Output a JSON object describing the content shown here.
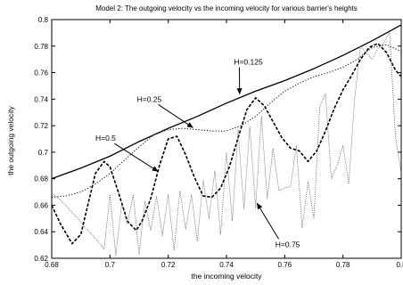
{
  "chart_data": {
    "type": "line",
    "title": "Model 2: The outgoing velocity vs the incoming velocity for various barrier's heights",
    "xlabel": "the incoming velocity",
    "ylabel": "the outgoing velocity",
    "xlim": [
      0.68,
      0.8
    ],
    "ylim": [
      0.62,
      0.8
    ],
    "xticks": [
      "0.68",
      "0.7",
      "0.72",
      "0.74",
      "0.76",
      "0.78",
      "0.8"
    ],
    "yticks": [
      "0.62",
      "0.64",
      "0.66",
      "0.68",
      "0.7",
      "0.72",
      "0.74",
      "0.76",
      "0.78",
      "0.8"
    ],
    "grid": false,
    "series": [
      {
        "name": "H=0.125",
        "style": "solid",
        "x": [
          0.68,
          0.69,
          0.7,
          0.71,
          0.72,
          0.73,
          0.74,
          0.75,
          0.76,
          0.77,
          0.78,
          0.79,
          0.8
        ],
        "y": [
          0.68,
          0.688,
          0.697,
          0.708,
          0.718,
          0.727,
          0.737,
          0.746,
          0.754,
          0.763,
          0.773,
          0.784,
          0.796
        ]
      },
      {
        "name": "H=0.25",
        "style": "dotted",
        "x": [
          0.68,
          0.685,
          0.69,
          0.695,
          0.7,
          0.705,
          0.71,
          0.715,
          0.72,
          0.725,
          0.73,
          0.735,
          0.74,
          0.745,
          0.75,
          0.755,
          0.76,
          0.765,
          0.77,
          0.775,
          0.78,
          0.785,
          0.79,
          0.795,
          0.8
        ],
        "y": [
          0.666,
          0.667,
          0.67,
          0.676,
          0.684,
          0.694,
          0.704,
          0.713,
          0.717,
          0.718,
          0.717,
          0.716,
          0.716,
          0.72,
          0.727,
          0.737,
          0.746,
          0.752,
          0.757,
          0.76,
          0.764,
          0.77,
          0.779,
          0.781,
          0.776
        ]
      },
      {
        "name": "H=0.5",
        "style": "dashed",
        "x": [
          0.68,
          0.683,
          0.687,
          0.69,
          0.695,
          0.698,
          0.7,
          0.703,
          0.706,
          0.709,
          0.711,
          0.714,
          0.717,
          0.72,
          0.723,
          0.726,
          0.729,
          0.732,
          0.735,
          0.738,
          0.741,
          0.744,
          0.747,
          0.75,
          0.753,
          0.756,
          0.759,
          0.762,
          0.765,
          0.768,
          0.771,
          0.774,
          0.777,
          0.78,
          0.783,
          0.786,
          0.789,
          0.792,
          0.795,
          0.798,
          0.8
        ],
        "y": [
          0.66,
          0.646,
          0.631,
          0.638,
          0.684,
          0.693,
          0.689,
          0.669,
          0.648,
          0.641,
          0.648,
          0.665,
          0.69,
          0.71,
          0.712,
          0.698,
          0.681,
          0.667,
          0.666,
          0.673,
          0.689,
          0.711,
          0.732,
          0.741,
          0.735,
          0.723,
          0.711,
          0.703,
          0.701,
          0.693,
          0.701,
          0.716,
          0.733,
          0.747,
          0.758,
          0.77,
          0.779,
          0.782,
          0.775,
          0.762,
          0.757
        ]
      },
      {
        "name": "H=0.75",
        "style": "thin",
        "x": [
          0.68,
          0.683,
          0.686,
          0.689,
          0.692,
          0.695,
          0.698,
          0.7,
          0.702,
          0.704,
          0.706,
          0.708,
          0.71,
          0.712,
          0.714,
          0.716,
          0.718,
          0.72,
          0.722,
          0.724,
          0.726,
          0.728,
          0.73,
          0.732,
          0.734,
          0.736,
          0.738,
          0.74,
          0.742,
          0.744,
          0.746,
          0.748,
          0.75,
          0.752,
          0.754,
          0.756,
          0.758,
          0.76,
          0.762,
          0.764,
          0.766,
          0.768,
          0.77,
          0.772,
          0.774,
          0.776,
          0.778,
          0.78,
          0.782,
          0.784,
          0.786,
          0.788,
          0.79,
          0.792,
          0.794,
          0.796,
          0.798,
          0.8
        ],
        "y": [
          0.669,
          0.664,
          0.657,
          0.65,
          0.642,
          0.635,
          0.627,
          0.668,
          0.622,
          0.661,
          0.646,
          0.668,
          0.623,
          0.663,
          0.641,
          0.667,
          0.637,
          0.668,
          0.626,
          0.671,
          0.642,
          0.668,
          0.633,
          0.679,
          0.65,
          0.686,
          0.638,
          0.7,
          0.648,
          0.717,
          0.657,
          0.719,
          0.658,
          0.727,
          0.665,
          0.703,
          0.671,
          0.673,
          0.674,
          0.705,
          0.643,
          0.678,
          0.65,
          0.734,
          0.744,
          0.68,
          0.69,
          0.705,
          0.676,
          0.74,
          0.78,
          0.775,
          0.77,
          0.778,
          0.782,
          0.791,
          0.712,
          0.684
        ]
      }
    ],
    "annotations": [
      {
        "text": "H=0.125",
        "x": 0.7475,
        "y": 0.766,
        "arrow_to": [
          0.7445,
          0.7438
        ]
      },
      {
        "text": "H=0.25",
        "x": 0.7135,
        "y": 0.738,
        "arrow_to": [
          0.7285,
          0.7185
        ]
      },
      {
        "text": "H=0.5",
        "x": 0.6985,
        "y": 0.7085,
        "arrow_to": [
          0.7165,
          0.6855
        ]
      },
      {
        "text": "H=0.75",
        "x": 0.761,
        "y": 0.6285,
        "arrow_to": [
          0.7505,
          0.6615
        ]
      }
    ]
  }
}
